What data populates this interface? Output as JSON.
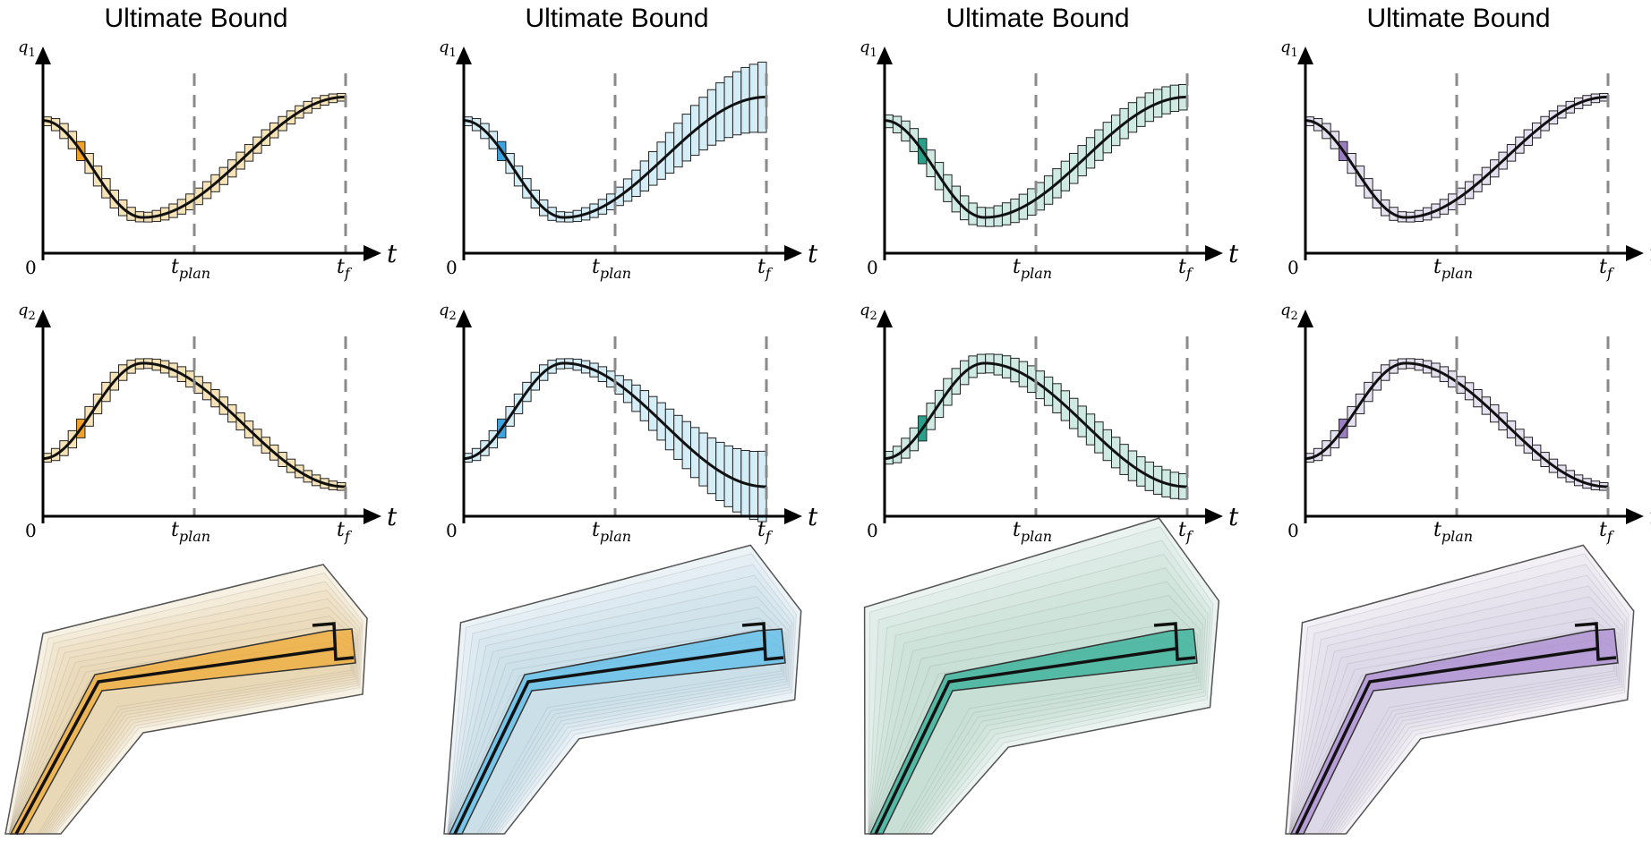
{
  "columns": [
    {
      "title": "Ultimate Bound",
      "colors": {
        "fill": "#f7e3b8",
        "highlight": "#f2a227",
        "arm_outer": "#e7d6b3",
        "arm_inner": "#f0a934"
      },
      "q1_band": [
        3,
        6,
        3
      ],
      "q2_band": [
        3,
        6,
        3
      ]
    },
    {
      "title": "Ultimate Bound",
      "colors": {
        "fill": "#d5edf6",
        "highlight": "#3aa5e0",
        "arm_outer": "#c9dde9",
        "arm_inner": "#5bbce8"
      },
      "q1_band": [
        3,
        6,
        40
      ],
      "q2_band": [
        3,
        6,
        40
      ]
    },
    {
      "title": "Ultimate Bound",
      "colors": {
        "fill": "#cfeae2",
        "highlight": "#2aa08a",
        "arm_outer": "#c2ddd3",
        "arm_inner": "#2fae96"
      },
      "q1_band": [
        6,
        12,
        14
      ],
      "q2_band": [
        6,
        12,
        14
      ]
    },
    {
      "title": "Ultimate Bound",
      "colors": {
        "fill": "#e6e1f0",
        "highlight": "#9b7ec2",
        "arm_outer": "#dcd7e6",
        "arm_inner": "#a98bd0"
      },
      "q1_band": [
        3,
        6,
        3
      ],
      "q2_band": [
        3,
        6,
        3
      ]
    }
  ],
  "labels": {
    "q1": "q",
    "q1_sub": "1",
    "q2": "q",
    "q2_sub": "2",
    "t": "t",
    "zero": "0",
    "tplan": "t",
    "tplan_sub": "plan",
    "tf": "t",
    "tf_sub": "f"
  },
  "curves": {
    "q1": {
      "start": 0.78,
      "min": 0.16,
      "end": 0.93
    },
    "q2": {
      "start": 0.3,
      "max": 0.91,
      "end": 0.12
    }
  }
}
